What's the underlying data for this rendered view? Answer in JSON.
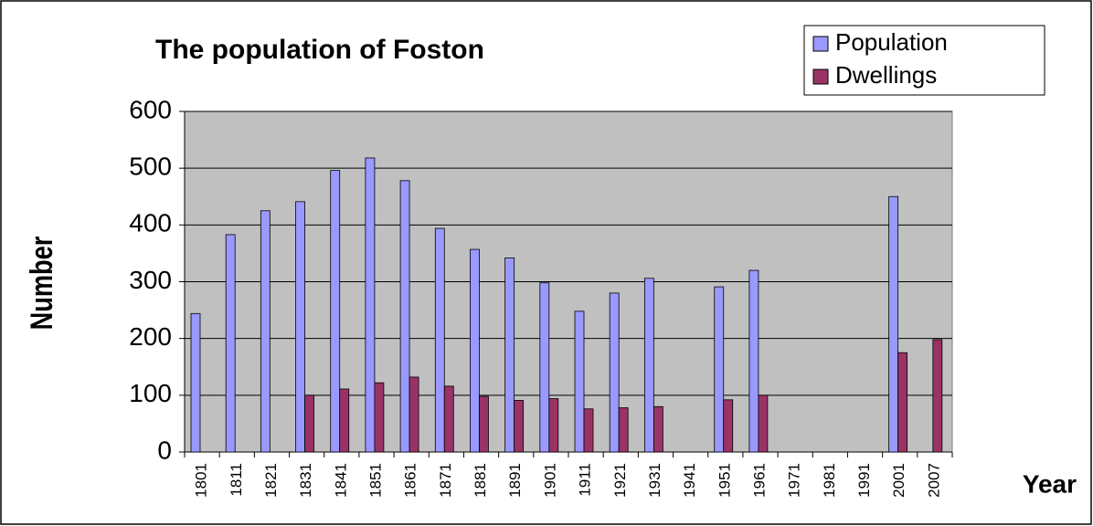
{
  "chart_data": {
    "type": "bar",
    "title": "The population of Foston",
    "x_label": "Year",
    "y_label": "Number",
    "categories": [
      "1801",
      "1811",
      "1821",
      "1831",
      "1841",
      "1851",
      "1861",
      "1871",
      "1881",
      "1891",
      "1901",
      "1911",
      "1921",
      "1931",
      "1941",
      "1951",
      "1961",
      "1971",
      "1981",
      "1991",
      "2001",
      "2007"
    ],
    "series": [
      {
        "name": "Population",
        "color": "#9999ff",
        "values": [
          244,
          383,
          425,
          441,
          496,
          518,
          478,
          394,
          357,
          342,
          298,
          248,
          280,
          306,
          null,
          291,
          320,
          null,
          null,
          null,
          450,
          null
        ]
      },
      {
        "name": "Dwellings",
        "color": "#993366",
        "values": [
          null,
          null,
          null,
          100,
          111,
          122,
          132,
          116,
          98,
          91,
          94,
          76,
          78,
          80,
          null,
          92,
          100,
          null,
          null,
          null,
          175,
          198
        ]
      }
    ],
    "ylim": [
      0,
      600
    ],
    "yticks": [
      0,
      100,
      200,
      300,
      400,
      500,
      600
    ],
    "grid": true,
    "legend": "top-right"
  }
}
